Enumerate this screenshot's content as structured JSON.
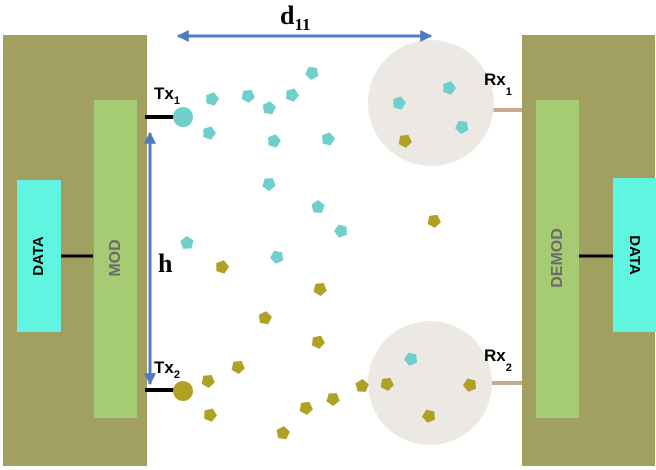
{
  "labels": {
    "tx1_main": "Tx",
    "tx1_sub": "1",
    "tx2_main": "Tx",
    "tx2_sub": "2",
    "rx1_main": "Rx",
    "rx1_sub": "1",
    "rx2_main": "Rx",
    "rx2_sub": "2",
    "distance_main": "d",
    "distance_sub": "11",
    "height": "h",
    "mod": "MOD",
    "demod": "DEMOD",
    "data_left": "DATA",
    "data_right": "DATA"
  },
  "colors": {
    "panel": "#a2a060",
    "mod_block": "#a6cc73",
    "data_block": "#5ff5e0",
    "block_text": "#000000",
    "mod_text": "#6b6b6b",
    "molecule_type1": "#6ecfcb",
    "molecule_type2": "#b0a024",
    "receiver_sphere": "#ece9e4",
    "arrow": "#4f7bc4",
    "rx_stub": "#c6ab91"
  },
  "molecules": {
    "type1_count": 15,
    "type2_count": 17
  }
}
